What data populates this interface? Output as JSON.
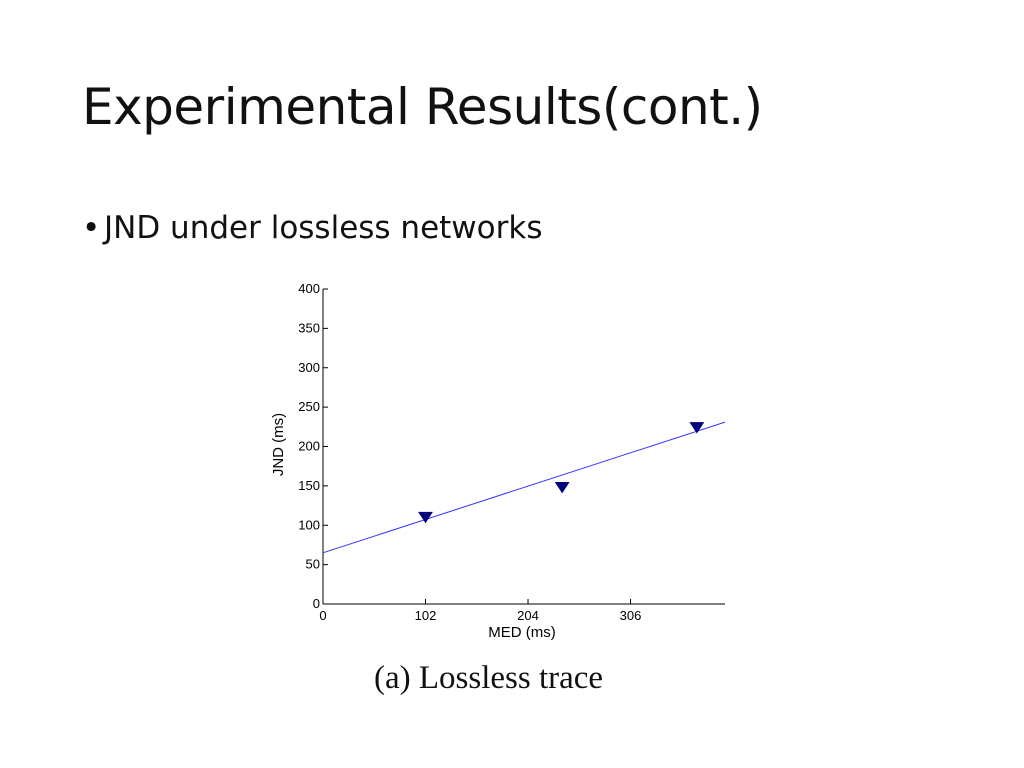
{
  "slide": {
    "title": "Experimental Results(cont.)",
    "bullet": "JND under lossless networks",
    "caption": "(a) Lossless trace"
  },
  "chart_data": {
    "type": "scatter",
    "xlabel": "MED (ms)",
    "ylabel": "JND (ms)",
    "xlim": [
      0,
      400
    ],
    "ylim": [
      0,
      400
    ],
    "xticks": [
      0,
      102,
      204,
      306
    ],
    "yticks": [
      0,
      50,
      100,
      150,
      200,
      250,
      300,
      350,
      400
    ],
    "series": [
      {
        "marker": "triangle-down",
        "color": "#00007f",
        "x": [
          102,
          238,
          372
        ],
        "y": [
          110,
          148,
          224
        ]
      }
    ],
    "fit_line": {
      "color": "#3333ff",
      "x": [
        0,
        400
      ],
      "y": [
        65,
        231
      ]
    }
  }
}
